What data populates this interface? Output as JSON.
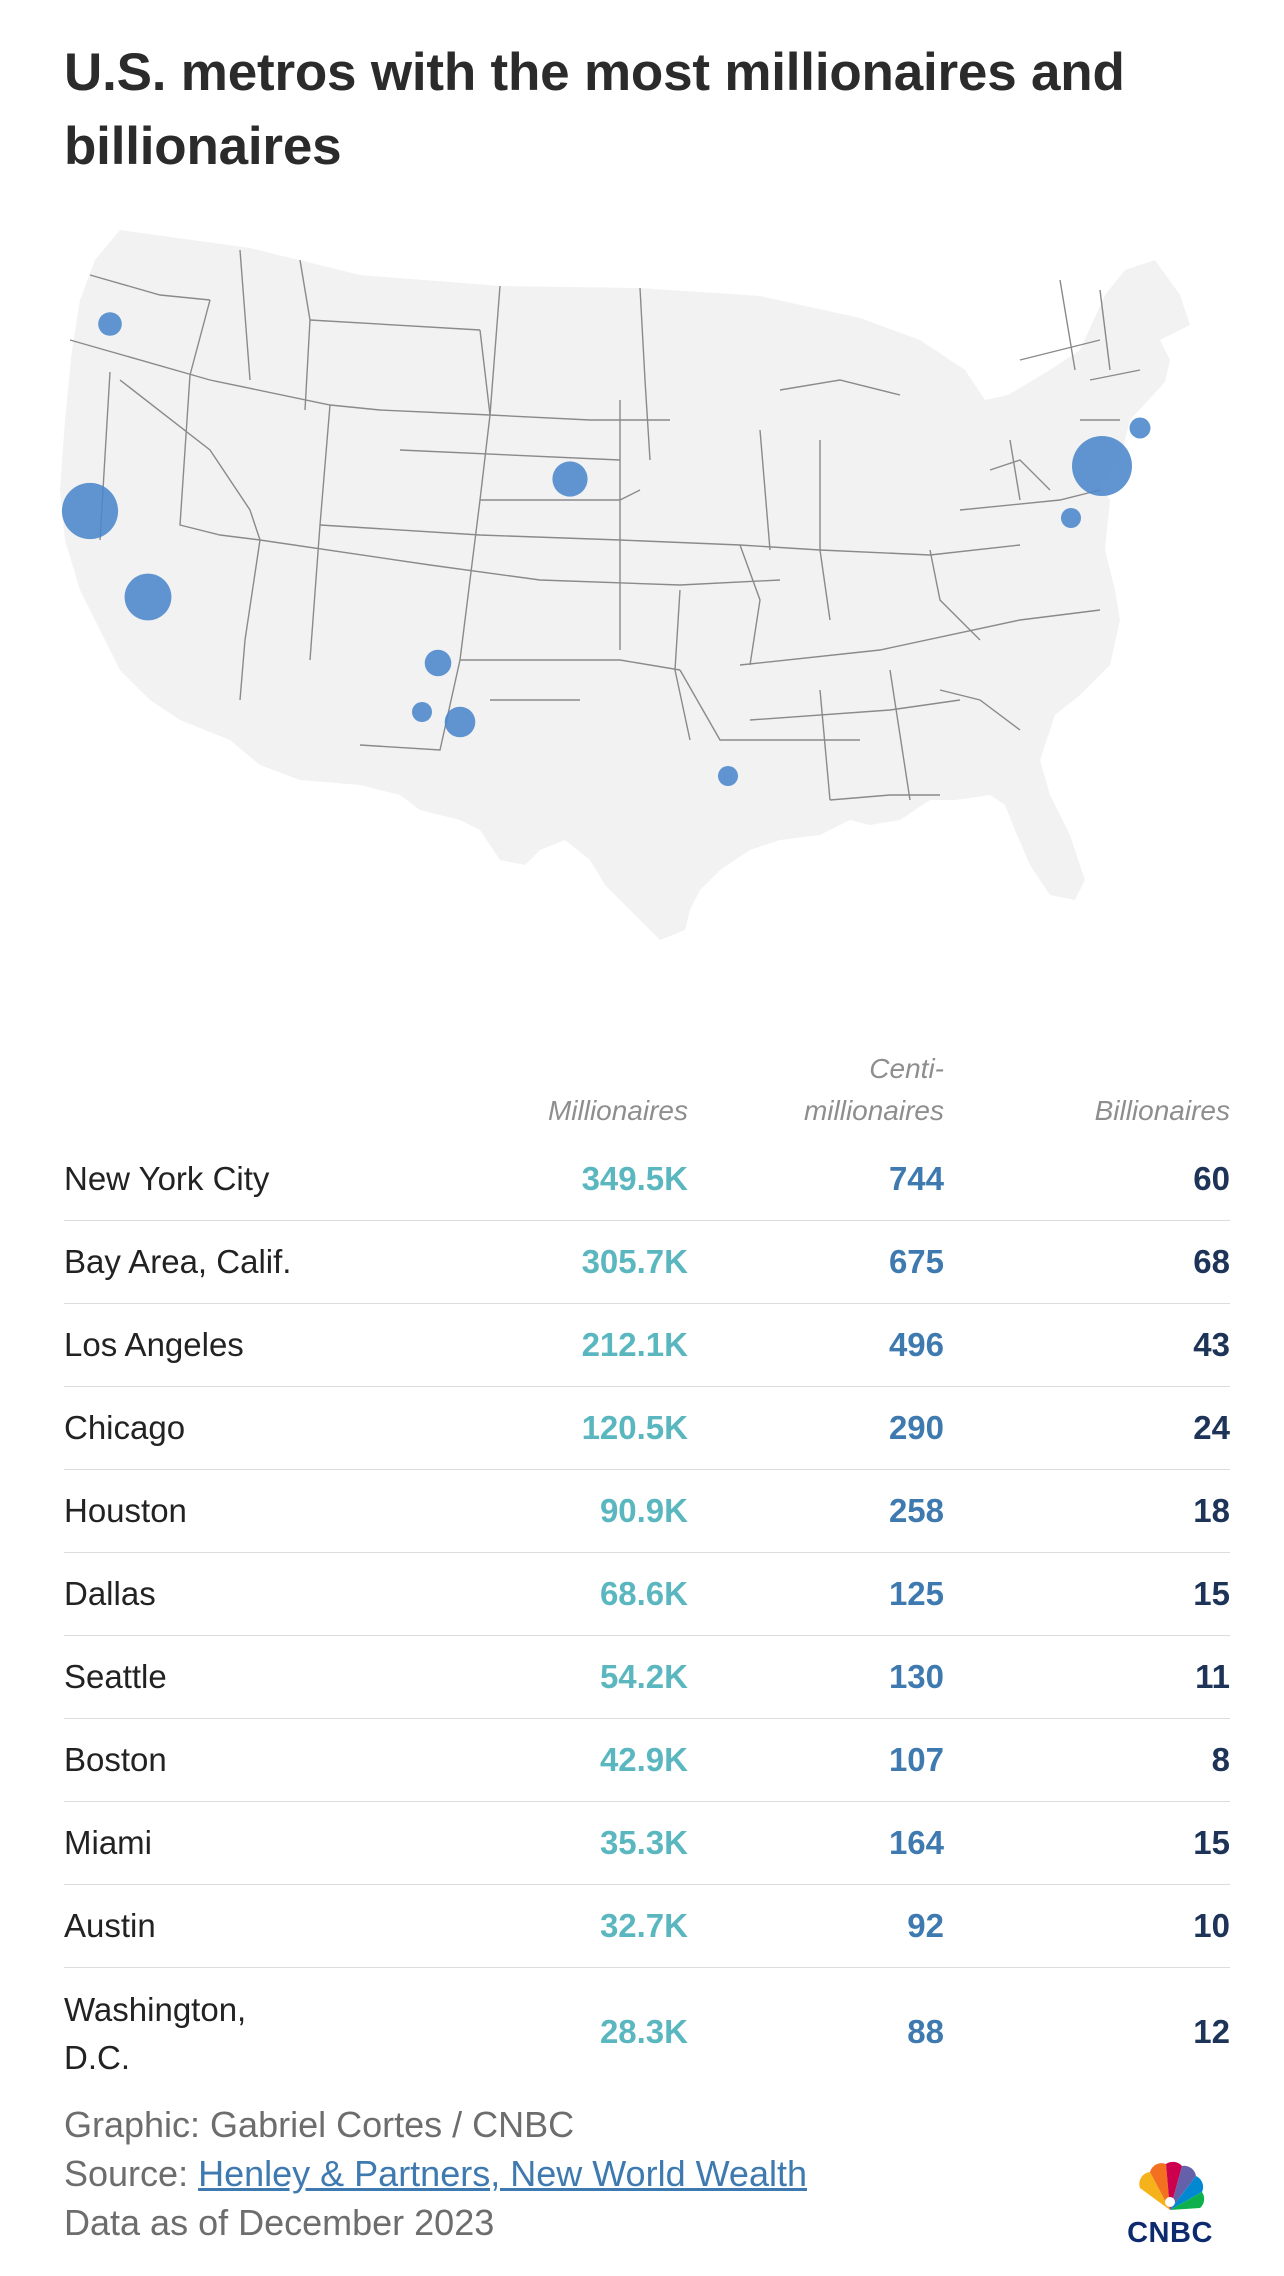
{
  "chart_data": {
    "type": "table",
    "title": "U.S. metros with the most millionaires and billionaires",
    "columns": {
      "millionaires": "Millionaires",
      "centi_line1": "Centi-",
      "centi_line2": "millionaires",
      "billionaires": "Billionaires"
    },
    "rows": [
      {
        "city": "New York City",
        "millionaires": "349.5K",
        "centimillionaires": "744",
        "billionaires": "60"
      },
      {
        "city": "Bay Area, Calif.",
        "millionaires": "305.7K",
        "centimillionaires": "675",
        "billionaires": "68"
      },
      {
        "city": "Los Angeles",
        "millionaires": "212.1K",
        "centimillionaires": "496",
        "billionaires": "43"
      },
      {
        "city": "Chicago",
        "millionaires": "120.5K",
        "centimillionaires": "290",
        "billionaires": "24"
      },
      {
        "city": "Houston",
        "millionaires": "90.9K",
        "centimillionaires": "258",
        "billionaires": "18"
      },
      {
        "city": "Dallas",
        "millionaires": "68.6K",
        "centimillionaires": "125",
        "billionaires": "15"
      },
      {
        "city": "Seattle",
        "millionaires": "54.2K",
        "centimillionaires": "130",
        "billionaires": "11"
      },
      {
        "city": "Boston",
        "millionaires": "42.9K",
        "centimillionaires": "107",
        "billionaires": "8"
      },
      {
        "city": "Miami",
        "millionaires": "35.3K",
        "centimillionaires": "164",
        "billionaires": "15"
      },
      {
        "city": "Austin",
        "millionaires": "32.7K",
        "centimillionaires": "92",
        "billionaires": "10"
      },
      {
        "city": "Washington, D.C.",
        "millionaires": "28.3K",
        "centimillionaires": "88",
        "billionaires": "12"
      }
    ],
    "map_bubble_values": [
      {
        "city": "New York City",
        "millionaires": 349.5
      },
      {
        "city": "Bay Area, Calif.",
        "millionaires": 305.7
      },
      {
        "city": "Los Angeles",
        "millionaires": 212.1
      },
      {
        "city": "Chicago",
        "millionaires": 120.5
      },
      {
        "city": "Houston",
        "millionaires": 90.9
      },
      {
        "city": "Dallas",
        "millionaires": 68.6
      },
      {
        "city": "Seattle",
        "millionaires": 54.2
      },
      {
        "city": "Boston",
        "millionaires": 42.9
      },
      {
        "city": "Miami",
        "millionaires": 35.3
      },
      {
        "city": "Austin",
        "millionaires": 32.7
      },
      {
        "city": "Washington, D.C.",
        "millionaires": 28.3
      }
    ]
  },
  "footer": {
    "graphic": "Graphic: Gabriel Cortes / CNBC",
    "source_prefix": "Source: ",
    "source_link": "Henley & Partners, New World Wealth",
    "data_as_of": "Data as of December 2023"
  },
  "logo": {
    "text": "CNBC"
  },
  "colors": {
    "millionaires": "#5bb7bf",
    "centimillionaires": "#3e79b0",
    "billionaires": "#1d3458",
    "bubble": "#4a86cc",
    "land": "#f2f2f2",
    "border": "#8a8a8a"
  }
}
